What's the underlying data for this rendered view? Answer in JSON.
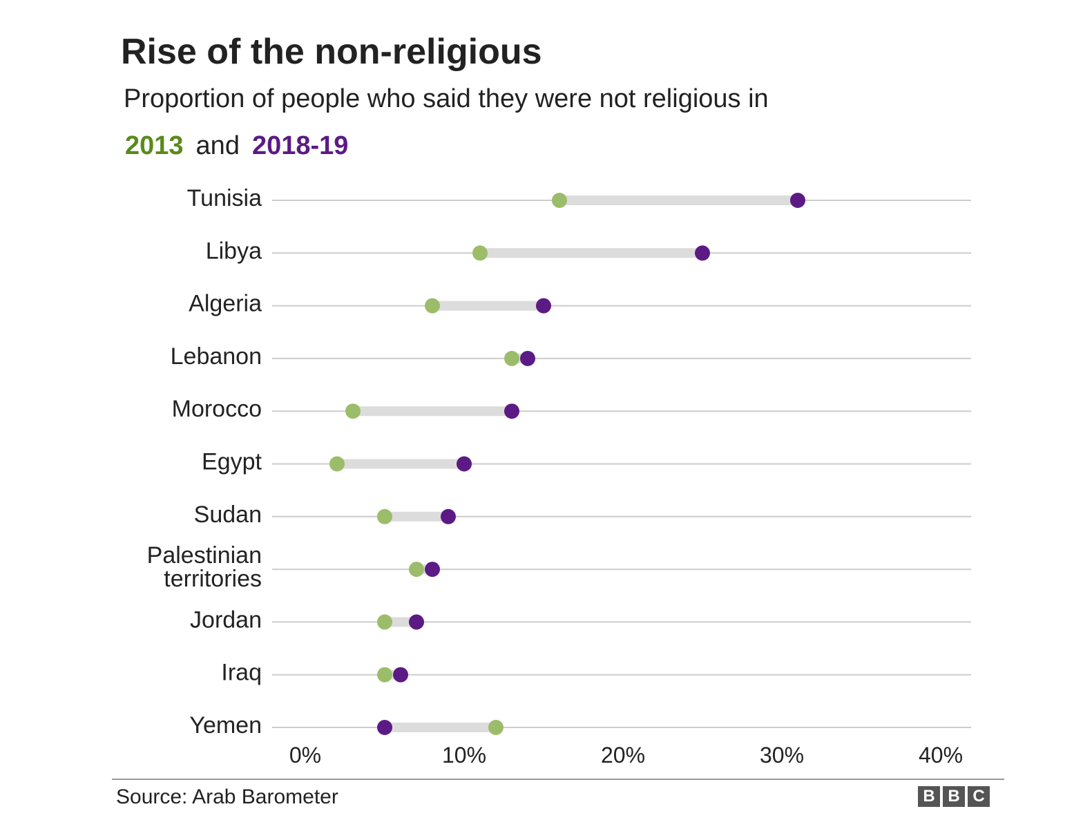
{
  "title": "Rise of the non-religious",
  "subtitle": "Proportion of people who said they were not religious in",
  "legend": {
    "year_a": "2013",
    "conjunction": "and",
    "year_b": "2018-19"
  },
  "source": "Source: Arab Barometer",
  "logo": [
    "B",
    "B",
    "C"
  ],
  "colors": {
    "year_2013": "#9bbd6a",
    "year_2018_19": "#5c1a85",
    "connector": "#dcdcdc",
    "gridline": "#cccccc"
  },
  "chart_data": {
    "type": "dot-plot",
    "title": "Rise of the non-religious",
    "subtitle": "Proportion of people who said they were not religious in",
    "xlim": [
      0,
      40
    ],
    "x_ticks": [
      "0%",
      "10%",
      "20%",
      "30%",
      "40%"
    ],
    "categories": [
      [
        "Tunisia"
      ],
      [
        "Libya"
      ],
      [
        "Algeria"
      ],
      [
        "Lebanon"
      ],
      [
        "Morocco"
      ],
      [
        "Egypt"
      ],
      [
        "Sudan"
      ],
      [
        "Palestinian",
        "territories"
      ],
      [
        "Jordan"
      ],
      [
        "Iraq"
      ],
      [
        "Yemen"
      ]
    ],
    "series": [
      {
        "name": "2013",
        "values": [
          16,
          11,
          8,
          13,
          3,
          2,
          5,
          7,
          5,
          5,
          12
        ]
      },
      {
        "name": "2018-19",
        "values": [
          31,
          25,
          15,
          14,
          13,
          10,
          9,
          8,
          7,
          6,
          5
        ]
      }
    ]
  }
}
